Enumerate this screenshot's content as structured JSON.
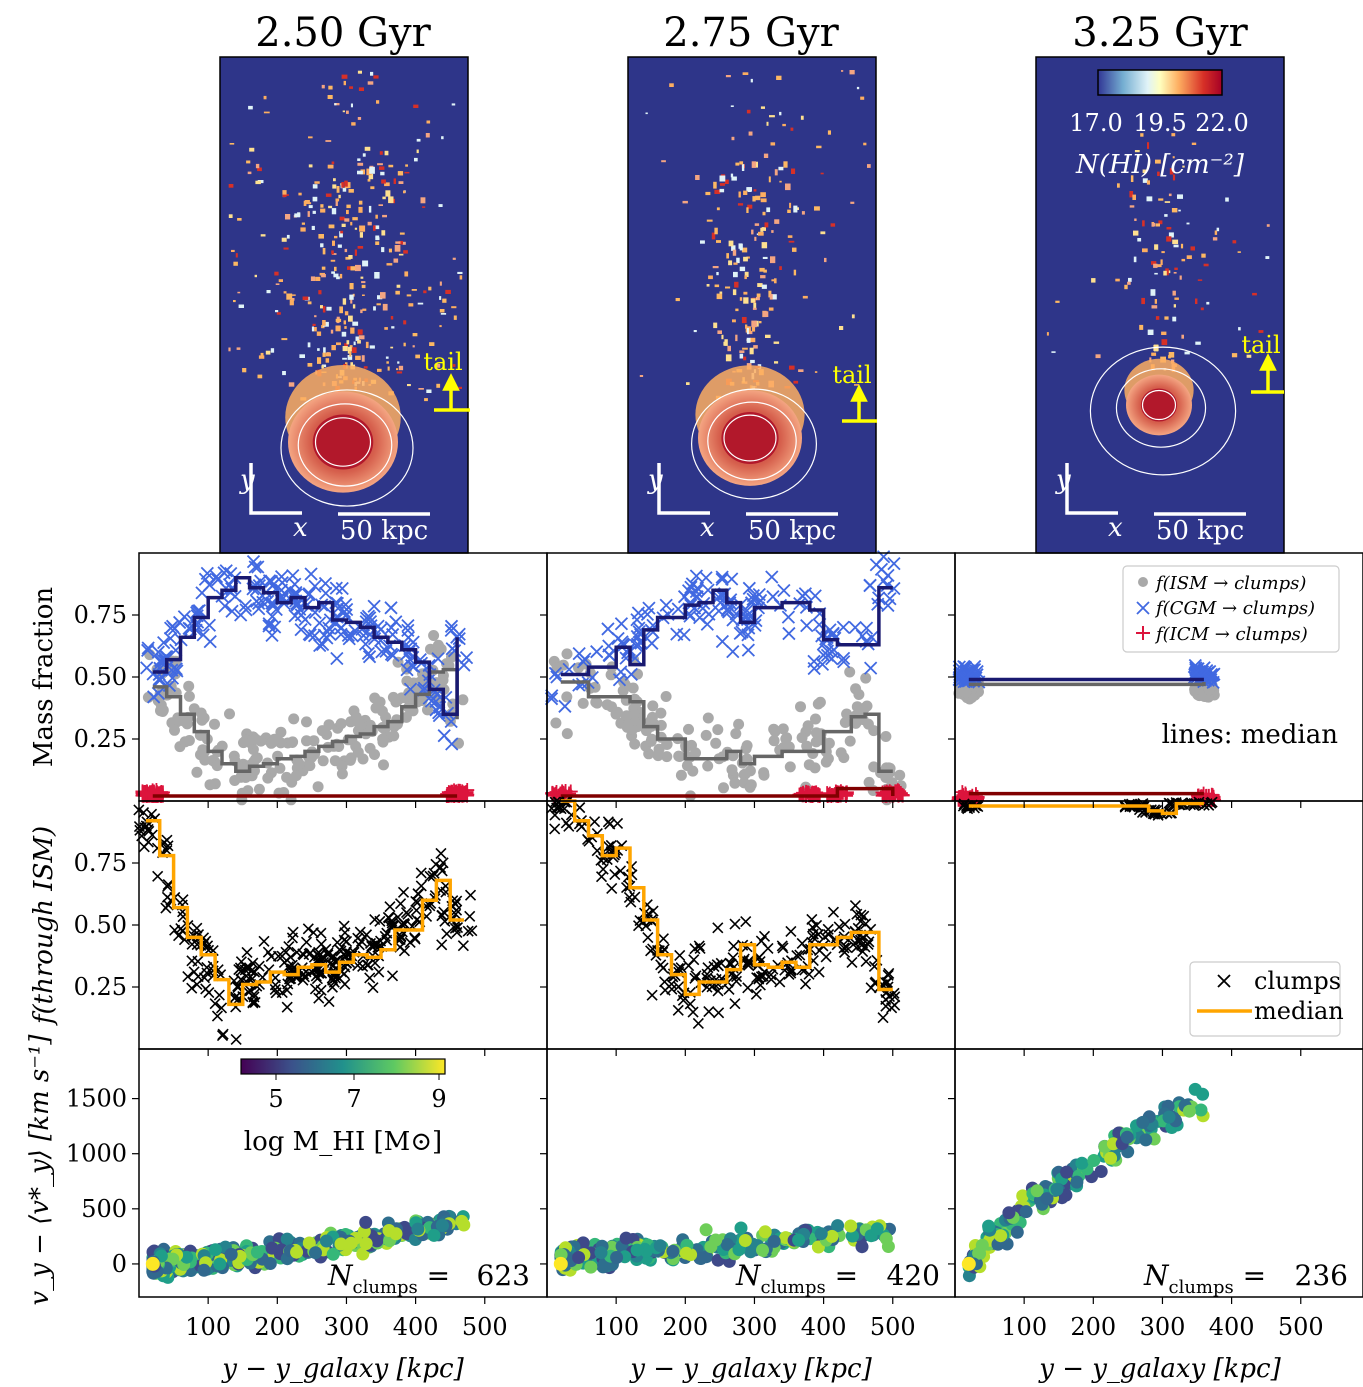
{
  "colors": {
    "map_background": "#2e3589",
    "ism": "#a9a9a9",
    "ism_median": "#666666",
    "cgm": "#4169e1",
    "cgm_median": "#191970",
    "icm": "#dc143c",
    "icm_median": "#800000",
    "clumps": "#000000",
    "median": "#ffa500",
    "annotation": "#ffff00",
    "contour": "#ffffff"
  },
  "top_maps": {
    "titles": [
      "2.50 Gyr",
      "2.75 Gyr",
      "3.25 Gyr"
    ],
    "tail_label": "tail",
    "axis_x": "x",
    "axis_y": "y",
    "scalebar_label": "50 kpc",
    "colorbar": {
      "colormap": "RdYlBu_r",
      "ticks": [
        "17.0",
        "19.5",
        "22.0"
      ],
      "label": "N(HI) [cm⁻²]"
    }
  },
  "panel_texts": {
    "ylabel_row1": "Mass fraction",
    "ylabel_row2": "f(through ISM)",
    "ylabel_row3": "v_y − ⟨v*_y⟩ [km s⁻¹]",
    "xlabel": "y − y_galaxy [kpc]",
    "legend_row1": [
      "f(ISM → clumps)",
      "f(CGM → clumps)",
      "f(ICM → clumps)"
    ],
    "lines_note": "lines: median",
    "legend_row2": [
      "clumps",
      "median"
    ],
    "colorbar_row3": {
      "ticks": [
        "5",
        "7",
        "9"
      ],
      "label": "log M_HI [M⊙]",
      "colormap": "viridis"
    },
    "n_clumps": [
      "623",
      "420",
      "236"
    ]
  },
  "chart_data": [
    {
      "type": "scatter",
      "title": "Mass fraction",
      "xlim": [
        0,
        590
      ],
      "ylim": [
        0,
        1.0
      ],
      "xticks": [
        100,
        200,
        300,
        400,
        500
      ],
      "yticks": [
        0.25,
        0.5,
        0.75
      ],
      "legend_position": "top-right",
      "series": [
        {
          "name": "f(ISM → clumps)",
          "panel": 1,
          "median_x": [
            20,
            40,
            60,
            80,
            100,
            120,
            140,
            160,
            180,
            200,
            220,
            240,
            260,
            280,
            300,
            320,
            340,
            360,
            380,
            400,
            420,
            440,
            460
          ],
          "median_y": [
            0.46,
            0.42,
            0.35,
            0.28,
            0.2,
            0.15,
            0.12,
            0.14,
            0.15,
            0.17,
            0.18,
            0.2,
            0.22,
            0.24,
            0.26,
            0.27,
            0.3,
            0.32,
            0.38,
            0.43,
            0.52,
            0.53,
            0.33
          ]
        },
        {
          "name": "f(CGM → clumps)",
          "panel": 1,
          "median_x": [
            20,
            40,
            60,
            80,
            100,
            120,
            140,
            160,
            180,
            200,
            220,
            240,
            260,
            280,
            300,
            320,
            340,
            360,
            380,
            400,
            420,
            440,
            460
          ],
          "median_y": [
            0.52,
            0.57,
            0.66,
            0.74,
            0.82,
            0.85,
            0.9,
            0.86,
            0.84,
            0.8,
            0.82,
            0.78,
            0.8,
            0.73,
            0.72,
            0.7,
            0.66,
            0.64,
            0.61,
            0.56,
            0.45,
            0.35,
            0.66
          ]
        },
        {
          "name": "f(ICM → clumps)",
          "panel": 1,
          "median_x": [
            20,
            460
          ],
          "median_y": [
            0.02,
            0.02
          ]
        },
        {
          "name": "f(ISM → clumps)",
          "panel": 2,
          "median_x": [
            20,
            60,
            100,
            120,
            140,
            160,
            200,
            240,
            260,
            280,
            300,
            340,
            380,
            400,
            440,
            460,
            480,
            500
          ],
          "median_y": [
            0.48,
            0.42,
            0.42,
            0.4,
            0.3,
            0.25,
            0.17,
            0.17,
            0.2,
            0.15,
            0.18,
            0.2,
            0.2,
            0.28,
            0.34,
            0.35,
            0.12,
            0.12
          ]
        },
        {
          "name": "f(CGM → clumps)",
          "panel": 2,
          "median_x": [
            20,
            60,
            100,
            120,
            140,
            160,
            200,
            220,
            240,
            260,
            280,
            300,
            340,
            380,
            400,
            420,
            460,
            480,
            500
          ],
          "median_y": [
            0.51,
            0.54,
            0.62,
            0.55,
            0.69,
            0.74,
            0.79,
            0.8,
            0.85,
            0.8,
            0.72,
            0.78,
            0.8,
            0.77,
            0.65,
            0.63,
            0.63,
            0.86,
            0.86
          ]
        },
        {
          "name": "f(ICM → clumps)",
          "panel": 2,
          "median_x": [
            20,
            380,
            420,
            500
          ],
          "median_y": [
            0.02,
            0.02,
            0.05,
            0.02
          ]
        },
        {
          "name": "f(ISM → clumps)",
          "panel": 3,
          "median_x": [
            20,
            360
          ],
          "median_y": [
            0.47,
            0.48
          ]
        },
        {
          "name": "f(CGM → clumps)",
          "panel": 3,
          "median_x": [
            20,
            360
          ],
          "median_y": [
            0.49,
            0.49
          ]
        },
        {
          "name": "f(ICM → clumps)",
          "panel": 3,
          "median_x": [
            20,
            360
          ],
          "median_y": [
            0.03,
            0.03
          ]
        }
      ]
    },
    {
      "type": "scatter",
      "title": "f(through ISM)",
      "xlim": [
        0,
        590
      ],
      "ylim": [
        0,
        1.0
      ],
      "xticks": [
        100,
        200,
        300,
        400,
        500
      ],
      "yticks": [
        0.25,
        0.5,
        0.75
      ],
      "legend_position": "bottom-right",
      "series": [
        {
          "name": "median",
          "panel": 1,
          "x": [
            10,
            30,
            50,
            70,
            90,
            110,
            130,
            150,
            170,
            190,
            210,
            230,
            250,
            270,
            290,
            310,
            330,
            350,
            370,
            390,
            410,
            430,
            450,
            470
          ],
          "y": [
            0.92,
            0.78,
            0.57,
            0.45,
            0.38,
            0.28,
            0.18,
            0.26,
            0.27,
            0.31,
            0.3,
            0.33,
            0.34,
            0.31,
            0.35,
            0.38,
            0.37,
            0.4,
            0.48,
            0.48,
            0.6,
            0.68,
            0.52,
            0.52
          ]
        },
        {
          "name": "median",
          "panel": 2,
          "x": [
            20,
            40,
            60,
            80,
            100,
            120,
            140,
            160,
            180,
            200,
            220,
            240,
            260,
            280,
            300,
            320,
            340,
            360,
            380,
            400,
            420,
            440,
            460,
            480,
            500
          ],
          "y": [
            1.0,
            0.92,
            0.86,
            0.78,
            0.81,
            0.65,
            0.52,
            0.38,
            0.3,
            0.22,
            0.27,
            0.27,
            0.32,
            0.42,
            0.34,
            0.33,
            0.35,
            0.33,
            0.42,
            0.42,
            0.45,
            0.47,
            0.47,
            0.24,
            0.24
          ]
        },
        {
          "name": "median",
          "panel": 3,
          "x": [
            20,
            260,
            280,
            300,
            320,
            340,
            360
          ],
          "y": [
            0.98,
            0.98,
            0.96,
            0.95,
            0.99,
            0.99,
            0.99
          ]
        }
      ]
    },
    {
      "type": "scatter",
      "title": "v_y − ⟨v*_y⟩",
      "xlim": [
        0,
        590
      ],
      "ylim": [
        -300,
        1950
      ],
      "xticks": [
        100,
        200,
        300,
        400,
        500
      ],
      "yticks": [
        0,
        500,
        1000,
        1500
      ],
      "trend": [
        {
          "panel": 1,
          "x": [
            20,
            100,
            200,
            300,
            400,
            470
          ],
          "v": [
            0,
            40,
            120,
            210,
            300,
            400
          ]
        },
        {
          "panel": 2,
          "x": [
            20,
            100,
            200,
            300,
            400,
            500
          ],
          "v": [
            50,
            100,
            130,
            180,
            250,
            280
          ]
        },
        {
          "panel": 3,
          "x": [
            20,
            100,
            200,
            270,
            360
          ],
          "v": [
            0,
            500,
            900,
            1200,
            1500
          ]
        }
      ]
    }
  ]
}
